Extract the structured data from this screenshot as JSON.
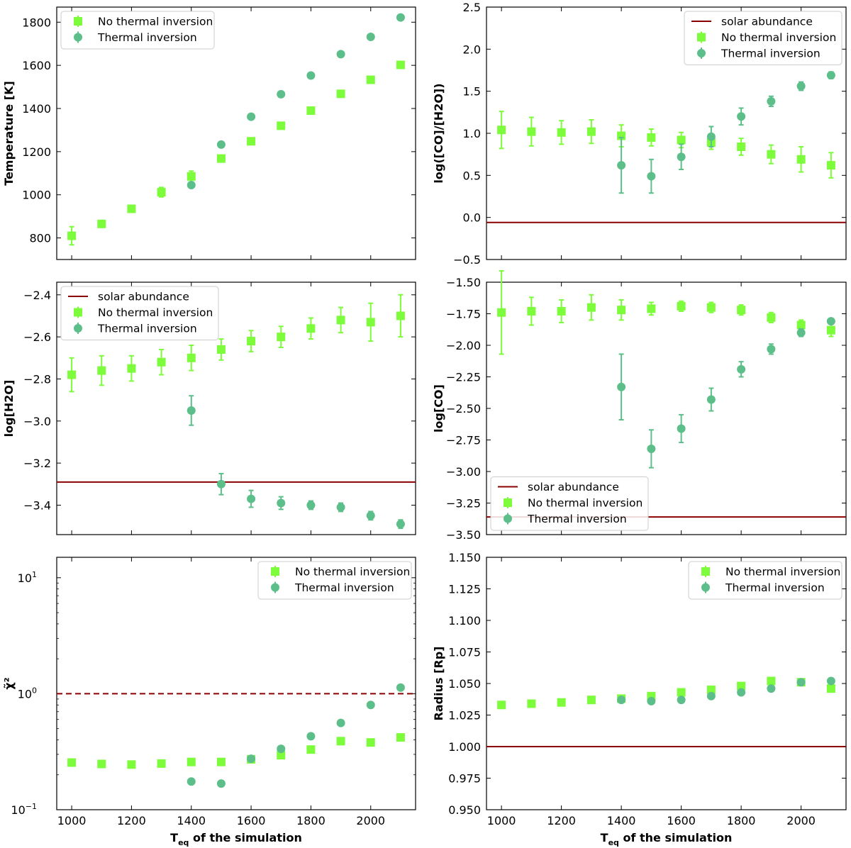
{
  "colors": {
    "no_inversion": "#7CFC3A",
    "inversion": "#5CBF8A",
    "solar": "#8B0000"
  },
  "chart_data": [
    {
      "id": "temperature",
      "type": "scatter",
      "ylabel": "Temperature [K]",
      "xlabel": "",
      "xlim": [
        950,
        2150
      ],
      "ylim": [
        700,
        1870
      ],
      "xticks": [
        1000,
        1200,
        1400,
        1600,
        1800,
        2000
      ],
      "yticks": [
        800,
        1000,
        1200,
        1400,
        1600,
        1800
      ],
      "yscale": "linear",
      "show_xticklabels": false,
      "legend": "top-left",
      "legend_entries": [
        "No thermal inversion",
        "Thermal inversion"
      ],
      "series": [
        {
          "name": "No thermal inversion",
          "marker": "square",
          "x": [
            1000,
            1100,
            1200,
            1300,
            1400,
            1500,
            1600,
            1700,
            1800,
            1900,
            2000,
            2100
          ],
          "y": [
            810,
            865,
            935,
            1012,
            1085,
            1168,
            1248,
            1320,
            1390,
            1468,
            1533,
            1602
          ],
          "err": [
            42,
            15,
            12,
            22,
            25,
            12,
            12,
            12,
            12,
            12,
            12,
            12
          ]
        },
        {
          "name": "Thermal inversion",
          "marker": "circle",
          "x": [
            1400,
            1500,
            1600,
            1700,
            1800,
            1900,
            2000,
            2100
          ],
          "y": [
            1045,
            1233,
            1362,
            1466,
            1553,
            1652,
            1732,
            1822
          ],
          "err": [
            5,
            5,
            5,
            5,
            5,
            5,
            5,
            5
          ]
        }
      ]
    },
    {
      "id": "co_h2o",
      "type": "scatter",
      "ylabel": "log([CO]/[H2O])",
      "xlabel": "",
      "xlim": [
        950,
        2150
      ],
      "ylim": [
        -0.5,
        2.5
      ],
      "xticks": [
        1000,
        1200,
        1400,
        1600,
        1800,
        2000
      ],
      "yticks": [
        -0.5,
        0.0,
        0.5,
        1.0,
        1.5,
        2.0,
        2.5
      ],
      "ytick_labels": [
        "−0.5",
        "0.0",
        "0.5",
        "1.0",
        "1.5",
        "2.0",
        "2.5"
      ],
      "yscale": "linear",
      "show_xticklabels": false,
      "solar_line": -0.06,
      "legend": "top-right",
      "legend_entries": [
        "solar abundance",
        "No thermal inversion",
        "Thermal inversion"
      ],
      "series": [
        {
          "name": "No thermal inversion",
          "marker": "square",
          "x": [
            1000,
            1100,
            1200,
            1300,
            1400,
            1500,
            1600,
            1700,
            1800,
            1900,
            2000,
            2100
          ],
          "y": [
            1.04,
            1.02,
            1.01,
            1.02,
            0.97,
            0.95,
            0.92,
            0.89,
            0.84,
            0.75,
            0.69,
            0.62
          ],
          "err": [
            0.22,
            0.17,
            0.14,
            0.14,
            0.13,
            0.1,
            0.09,
            0.08,
            0.1,
            0.11,
            0.15,
            0.15
          ]
        },
        {
          "name": "Thermal inversion",
          "marker": "circle",
          "x": [
            1400,
            1500,
            1600,
            1700,
            1800,
            1900,
            2000,
            2100
          ],
          "y": [
            0.62,
            0.49,
            0.72,
            0.96,
            1.2,
            1.38,
            1.56,
            1.69
          ],
          "err": [
            0.33,
            0.2,
            0.15,
            0.12,
            0.1,
            0.06,
            0.05,
            0.04
          ]
        }
      ]
    },
    {
      "id": "h2o",
      "type": "scatter",
      "ylabel": "log[H2O]",
      "xlabel": "",
      "xlim": [
        950,
        2150
      ],
      "ylim": [
        -3.54,
        -2.34
      ],
      "xticks": [
        1000,
        1200,
        1400,
        1600,
        1800,
        2000
      ],
      "yticks": [
        -3.4,
        -3.2,
        -3.0,
        -2.8,
        -2.6,
        -2.4
      ],
      "ytick_labels": [
        "−3.4",
        "−3.2",
        "−3.0",
        "−2.8",
        "−2.6",
        "−2.4"
      ],
      "yscale": "linear",
      "show_xticklabels": false,
      "solar_line": -3.29,
      "legend": "top-left",
      "legend_entries": [
        "solar abundance",
        "No thermal inversion",
        "Thermal inversion"
      ],
      "series": [
        {
          "name": "No thermal inversion",
          "marker": "square",
          "x": [
            1000,
            1100,
            1200,
            1300,
            1400,
            1500,
            1600,
            1700,
            1800,
            1900,
            2000,
            2100
          ],
          "y": [
            -2.78,
            -2.76,
            -2.75,
            -2.72,
            -2.7,
            -2.66,
            -2.62,
            -2.6,
            -2.56,
            -2.52,
            -2.53,
            -2.5
          ],
          "err": [
            0.08,
            0.07,
            0.06,
            0.06,
            0.06,
            0.05,
            0.05,
            0.05,
            0.05,
            0.06,
            0.09,
            0.1
          ]
        },
        {
          "name": "Thermal inversion",
          "marker": "circle",
          "x": [
            1400,
            1500,
            1600,
            1700,
            1800,
            1900,
            2000,
            2100
          ],
          "y": [
            -2.95,
            -3.3,
            -3.37,
            -3.39,
            -3.4,
            -3.41,
            -3.45,
            -3.49
          ],
          "err": [
            0.07,
            0.05,
            0.04,
            0.03,
            0.02,
            0.02,
            0.02,
            0.02
          ]
        }
      ]
    },
    {
      "id": "co",
      "type": "scatter",
      "ylabel": "log[CO]",
      "xlabel": "",
      "xlim": [
        950,
        2150
      ],
      "ylim": [
        -3.5,
        -1.5
      ],
      "xticks": [
        1000,
        1200,
        1400,
        1600,
        1800,
        2000
      ],
      "yticks": [
        -3.5,
        -3.25,
        -3.0,
        -2.75,
        -2.5,
        -2.25,
        -2.0,
        -1.75,
        -1.5
      ],
      "ytick_labels": [
        "−3.50",
        "−3.25",
        "−3.00",
        "−2.75",
        "−2.50",
        "−2.25",
        "−2.00",
        "−1.75",
        "−1.50"
      ],
      "yscale": "linear",
      "show_xticklabels": false,
      "solar_line": -3.36,
      "legend": "bottom-left",
      "legend_entries": [
        "solar abundance",
        "No thermal inversion",
        "Thermal inversion"
      ],
      "series": [
        {
          "name": "No thermal inversion",
          "marker": "square",
          "x": [
            1000,
            1100,
            1200,
            1300,
            1400,
            1500,
            1600,
            1700,
            1800,
            1900,
            2000,
            2100
          ],
          "y": [
            -1.74,
            -1.73,
            -1.73,
            -1.7,
            -1.72,
            -1.71,
            -1.69,
            -1.7,
            -1.72,
            -1.78,
            -1.84,
            -1.88
          ],
          "err": [
            0.33,
            0.11,
            0.09,
            0.1,
            0.08,
            0.05,
            0.04,
            0.04,
            0.04,
            0.04,
            0.04,
            0.05
          ]
        },
        {
          "name": "Thermal inversion",
          "marker": "circle",
          "x": [
            1400,
            1500,
            1600,
            1700,
            1800,
            1900,
            2000,
            2100
          ],
          "y": [
            -2.33,
            -2.82,
            -2.66,
            -2.43,
            -2.19,
            -2.03,
            -1.9,
            -1.81
          ],
          "err": [
            0.26,
            0.15,
            0.11,
            0.09,
            0.06,
            0.04,
            0.03,
            0.02
          ]
        }
      ]
    },
    {
      "id": "chi2",
      "type": "scatter",
      "ylabel": "χ̃²",
      "xlabel": "T_eq of the simulation",
      "xlim": [
        950,
        2150
      ],
      "ylim": [
        0.1,
        15
      ],
      "xticks": [
        1000,
        1200,
        1400,
        1600,
        1800,
        2000
      ],
      "yticks_major": [
        0.1,
        1,
        10
      ],
      "ytick_bases": [
        "10",
        "10",
        "10"
      ],
      "ytick_exps": [
        "−1",
        "0",
        "1"
      ],
      "yscale": "log",
      "show_xticklabels": true,
      "ref_line": 1,
      "legend": "top-right",
      "legend_entries": [
        "No thermal inversion",
        "Thermal inversion"
      ],
      "series": [
        {
          "name": "No thermal inversion",
          "marker": "square",
          "x": [
            1000,
            1100,
            1200,
            1300,
            1400,
            1500,
            1600,
            1700,
            1800,
            1900,
            2000,
            2100
          ],
          "y": [
            0.255,
            0.248,
            0.245,
            0.25,
            0.258,
            0.258,
            0.272,
            0.295,
            0.33,
            0.39,
            0.38,
            0.42
          ],
          "err": [
            0,
            0,
            0,
            0,
            0,
            0,
            0,
            0,
            0,
            0,
            0,
            0
          ]
        },
        {
          "name": "Thermal inversion",
          "marker": "circle",
          "x": [
            1400,
            1500,
            1600,
            1700,
            1800,
            1900,
            2000,
            2100
          ],
          "y": [
            0.175,
            0.168,
            0.275,
            0.335,
            0.43,
            0.56,
            0.8,
            1.13
          ],
          "err": [
            0,
            0,
            0,
            0,
            0,
            0,
            0,
            0
          ]
        }
      ]
    },
    {
      "id": "radius",
      "type": "scatter",
      "ylabel": "Radius [Rp]",
      "xlabel": "T_eq of the simulation",
      "xlim": [
        950,
        2150
      ],
      "ylim": [
        0.95,
        1.15
      ],
      "xticks": [
        1000,
        1200,
        1400,
        1600,
        1800,
        2000
      ],
      "yticks": [
        0.95,
        0.975,
        1.0,
        1.025,
        1.05,
        1.075,
        1.1,
        1.125,
        1.15
      ],
      "ytick_labels": [
        "0.950",
        "0.975",
        "1.000",
        "1.025",
        "1.050",
        "1.075",
        "1.100",
        "1.125",
        "1.150"
      ],
      "yscale": "linear",
      "show_xticklabels": true,
      "solar_line": 1.0,
      "legend": "top-right",
      "legend_entries": [
        "No thermal inversion",
        "Thermal inversion"
      ],
      "series": [
        {
          "name": "No thermal inversion",
          "marker": "square",
          "x": [
            1000,
            1100,
            1200,
            1300,
            1400,
            1500,
            1600,
            1700,
            1800,
            1900,
            2000,
            2100
          ],
          "y": [
            1.033,
            1.034,
            1.035,
            1.037,
            1.038,
            1.04,
            1.043,
            1.045,
            1.048,
            1.052,
            1.051,
            1.046
          ],
          "err": [
            0,
            0,
            0,
            0,
            0,
            0,
            0,
            0,
            0,
            0,
            0,
            0
          ]
        },
        {
          "name": "Thermal inversion",
          "marker": "circle",
          "x": [
            1400,
            1500,
            1600,
            1700,
            1800,
            1900,
            2000,
            2100
          ],
          "y": [
            1.037,
            1.036,
            1.037,
            1.04,
            1.043,
            1.046,
            1.051,
            1.052
          ],
          "err": [
            0,
            0,
            0,
            0,
            0,
            0,
            0,
            0
          ]
        }
      ]
    }
  ]
}
